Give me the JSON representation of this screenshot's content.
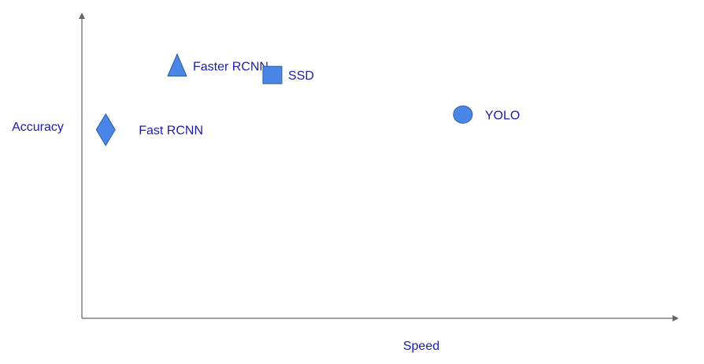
{
  "chart_data": {
    "type": "scatter",
    "title": "",
    "xlabel": "Speed",
    "ylabel": "Accuracy",
    "xlim": [
      0,
      10
    ],
    "ylim": [
      0,
      10
    ],
    "grid": false,
    "legend": "none",
    "axes_visible": "axis lines with arrowheads, no ticks",
    "colors": {
      "marker_fill": "#4a86e8",
      "marker_stroke": "#2f5d9e",
      "label_text": "#1c1ca8",
      "axis": "#666666"
    },
    "points": [
      {
        "label": "Fast RCNN",
        "marker": "diamond",
        "x": 0.4,
        "y": 6.2
      },
      {
        "label": "Faster RCNN",
        "marker": "triangle",
        "x": 1.6,
        "y": 8.3
      },
      {
        "label": "SSD",
        "marker": "square",
        "x": 3.2,
        "y": 8.0
      },
      {
        "label": "YOLO",
        "marker": "circle",
        "x": 6.4,
        "y": 6.7
      }
    ]
  }
}
